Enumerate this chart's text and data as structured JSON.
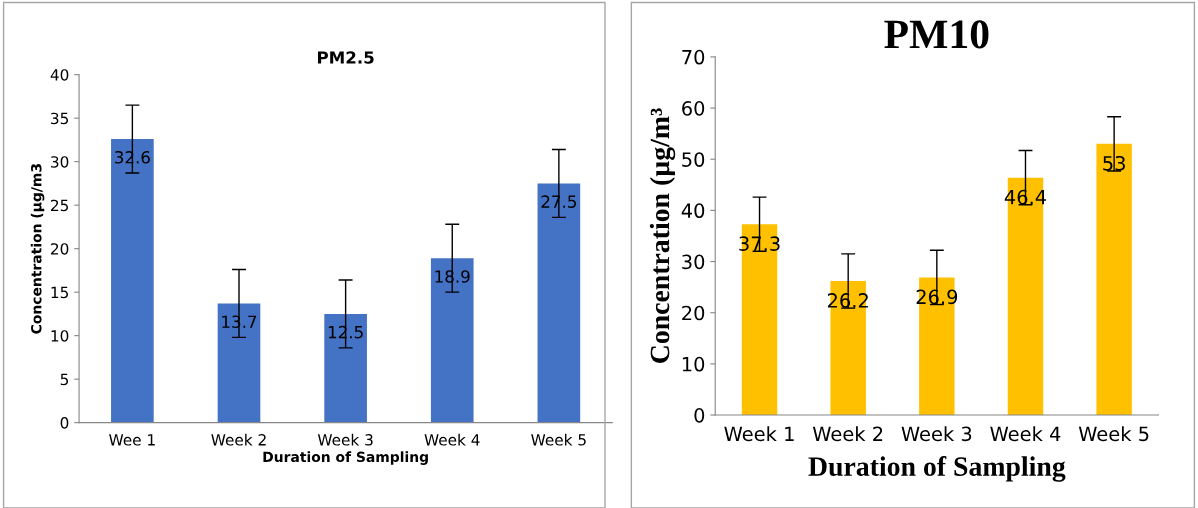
{
  "chart_data": [
    {
      "type": "bar",
      "title": "PM2.5",
      "xlabel": "Duration of Sampling",
      "ylabel": "Concentration (µg/m3",
      "categories": [
        "Wee 1",
        "Week 2",
        "Week 3",
        "Week 4",
        "Week 5"
      ],
      "values": [
        32.6,
        13.7,
        12.5,
        18.9,
        27.5
      ],
      "errors": [
        3.9,
        3.9,
        3.9,
        3.9,
        3.9
      ],
      "color": "#4472c4",
      "ylim": [
        0,
        40
      ],
      "yticks": [
        0,
        5,
        10,
        15,
        20,
        25,
        30,
        35,
        40
      ],
      "data_labels": true,
      "grid": false,
      "legend": false
    },
    {
      "type": "bar",
      "title": "PM10",
      "xlabel": "Duration of Sampling",
      "ylabel": "Concentration (µg/m³",
      "categories": [
        "Week 1",
        "Week 2",
        "Week 3",
        "Week 4",
        "Week 5"
      ],
      "values": [
        37.3,
        26.2,
        26.9,
        46.4,
        53
      ],
      "errors": [
        5.3,
        5.3,
        5.3,
        5.3,
        5.3
      ],
      "color": "#ffc000",
      "ylim": [
        0,
        70
      ],
      "yticks": [
        0,
        10,
        20,
        30,
        40,
        50,
        60,
        70
      ],
      "data_labels": true,
      "grid": false,
      "legend": false
    }
  ]
}
